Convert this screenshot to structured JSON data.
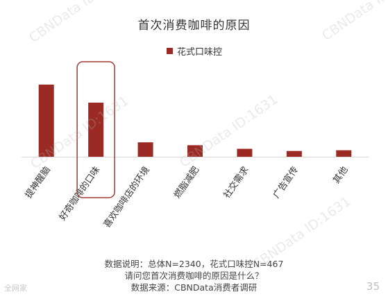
{
  "title": "首次消费咖啡的原因",
  "legend": {
    "label": "花式口味控"
  },
  "colors": {
    "bar": "#9b2a24",
    "highlight_box": "#a03a30",
    "axis": "#d9d9d9"
  },
  "notes": {
    "line1": "数据说明：总体N=2340，花式口味控N=467",
    "line2": "请问您首次消费咖啡的原因是什么？",
    "line3": "数据来源：CBNData消费者调研"
  },
  "footer": {
    "left": "全网家",
    "page": "35"
  },
  "watermark": "CBNData ID:1631",
  "chart_data": {
    "type": "bar",
    "categories": [
      "提神醒脑",
      "好奇咖啡的口味",
      "喜欢咖啡店的环境",
      "燃脂减肥",
      "社交需求",
      "广告宣传",
      "其他"
    ],
    "series": [
      {
        "name": "花式口味控",
        "values": [
          100,
          75,
          20,
          16,
          11,
          8,
          9
        ]
      }
    ],
    "ylim": [
      0,
      100
    ],
    "grid": false,
    "legend_position": "top",
    "highlight_category": "好奇咖啡的口味"
  }
}
